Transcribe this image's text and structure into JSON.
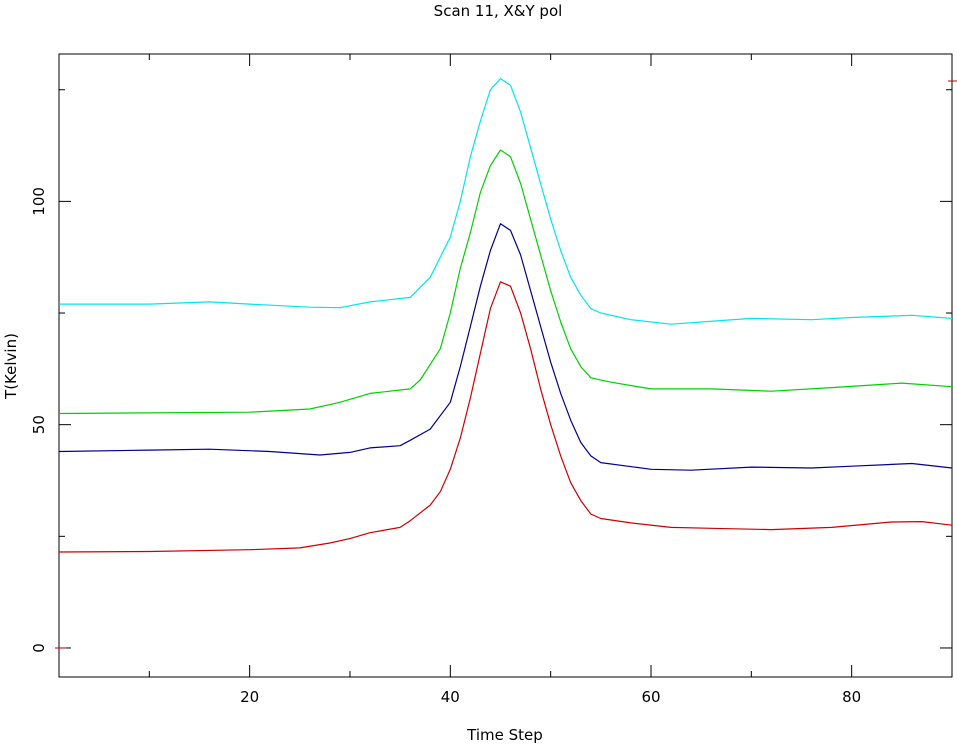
{
  "chart_data": {
    "type": "line",
    "title": "Scan 11, X&Y pol",
    "xlabel": "Time Step",
    "ylabel": "T(Kelvin)",
    "xlim": [
      1,
      90
    ],
    "ylim": [
      -6.5,
      133
    ],
    "x_ticks": [
      20,
      40,
      60,
      80
    ],
    "y_ticks": [
      0,
      50,
      100
    ],
    "grid": false,
    "series": [
      {
        "color": "#00e5ee",
        "points": [
          [
            1,
            77
          ],
          [
            10,
            77
          ],
          [
            16,
            77.5
          ],
          [
            20,
            77
          ],
          [
            26,
            76.3
          ],
          [
            29,
            76.2
          ],
          [
            32,
            77.5
          ],
          [
            36,
            78.5
          ],
          [
            38,
            83
          ],
          [
            40,
            92
          ],
          [
            41,
            100
          ],
          [
            42,
            110
          ],
          [
            43,
            118
          ],
          [
            44,
            125
          ],
          [
            45,
            127.5
          ],
          [
            46,
            126
          ],
          [
            47,
            120
          ],
          [
            48,
            112
          ],
          [
            49,
            104
          ],
          [
            50,
            96
          ],
          [
            51,
            89
          ],
          [
            52,
            83
          ],
          [
            53,
            79
          ],
          [
            54,
            76
          ],
          [
            55,
            75
          ],
          [
            58,
            73.5
          ],
          [
            62,
            72.5
          ],
          [
            65,
            73
          ],
          [
            70,
            73.8
          ],
          [
            76,
            73.5
          ],
          [
            80,
            74
          ],
          [
            86,
            74.5
          ],
          [
            90,
            73.8
          ]
        ]
      },
      {
        "color": "#00d000",
        "points": [
          [
            1,
            52.5
          ],
          [
            20,
            52.8
          ],
          [
            26,
            53.5
          ],
          [
            29,
            55
          ],
          [
            32,
            57
          ],
          [
            36,
            58
          ],
          [
            37,
            60
          ],
          [
            39,
            67
          ],
          [
            40,
            75
          ],
          [
            41,
            85
          ],
          [
            42,
            93
          ],
          [
            43,
            102
          ],
          [
            44,
            108
          ],
          [
            45,
            111.5
          ],
          [
            46,
            110
          ],
          [
            47,
            104
          ],
          [
            48,
            96
          ],
          [
            49,
            88
          ],
          [
            50,
            80
          ],
          [
            51,
            73
          ],
          [
            52,
            67
          ],
          [
            53,
            63
          ],
          [
            54,
            60.5
          ],
          [
            56,
            59.5
          ],
          [
            60,
            58
          ],
          [
            66,
            58
          ],
          [
            72,
            57.5
          ],
          [
            78,
            58.3
          ],
          [
            85,
            59.3
          ],
          [
            90,
            58.5
          ]
        ]
      },
      {
        "color": "#00008b",
        "points": [
          [
            1,
            44
          ],
          [
            10,
            44.3
          ],
          [
            16,
            44.5
          ],
          [
            22,
            44
          ],
          [
            27,
            43.2
          ],
          [
            30,
            43.8
          ],
          [
            32,
            44.8
          ],
          [
            35,
            45.3
          ],
          [
            36,
            46.5
          ],
          [
            38,
            49
          ],
          [
            40,
            55
          ],
          [
            41,
            63
          ],
          [
            42,
            72
          ],
          [
            43,
            81
          ],
          [
            44,
            89
          ],
          [
            45,
            95
          ],
          [
            46,
            93.5
          ],
          [
            47,
            88
          ],
          [
            48,
            80
          ],
          [
            49,
            72
          ],
          [
            50,
            64
          ],
          [
            51,
            57
          ],
          [
            52,
            51
          ],
          [
            53,
            46
          ],
          [
            54,
            43
          ],
          [
            55,
            41.5
          ],
          [
            60,
            40
          ],
          [
            64,
            39.8
          ],
          [
            70,
            40.5
          ],
          [
            76,
            40.3
          ],
          [
            80,
            40.7
          ],
          [
            86,
            41.3
          ],
          [
            90,
            40.3
          ]
        ]
      },
      {
        "color": "#cc0000",
        "points": [
          [
            1,
            21.5
          ],
          [
            10,
            21.6
          ],
          [
            20,
            22
          ],
          [
            25,
            22.4
          ],
          [
            28,
            23.5
          ],
          [
            30,
            24.5
          ],
          [
            32,
            25.8
          ],
          [
            35,
            27
          ],
          [
            36,
            28.5
          ],
          [
            38,
            32
          ],
          [
            39,
            35
          ],
          [
            40,
            40
          ],
          [
            41,
            47
          ],
          [
            42,
            56
          ],
          [
            43,
            66
          ],
          [
            44,
            76
          ],
          [
            45,
            82
          ],
          [
            46,
            81
          ],
          [
            47,
            75
          ],
          [
            48,
            67
          ],
          [
            49,
            58
          ],
          [
            50,
            50
          ],
          [
            51,
            43
          ],
          [
            52,
            37
          ],
          [
            53,
            33
          ],
          [
            54,
            30
          ],
          [
            55,
            29
          ],
          [
            58,
            28
          ],
          [
            62,
            27
          ],
          [
            66,
            26.8
          ],
          [
            72,
            26.5
          ],
          [
            78,
            27
          ],
          [
            84,
            28.2
          ],
          [
            87,
            28.3
          ],
          [
            90,
            27.5
          ]
        ]
      }
    ]
  }
}
